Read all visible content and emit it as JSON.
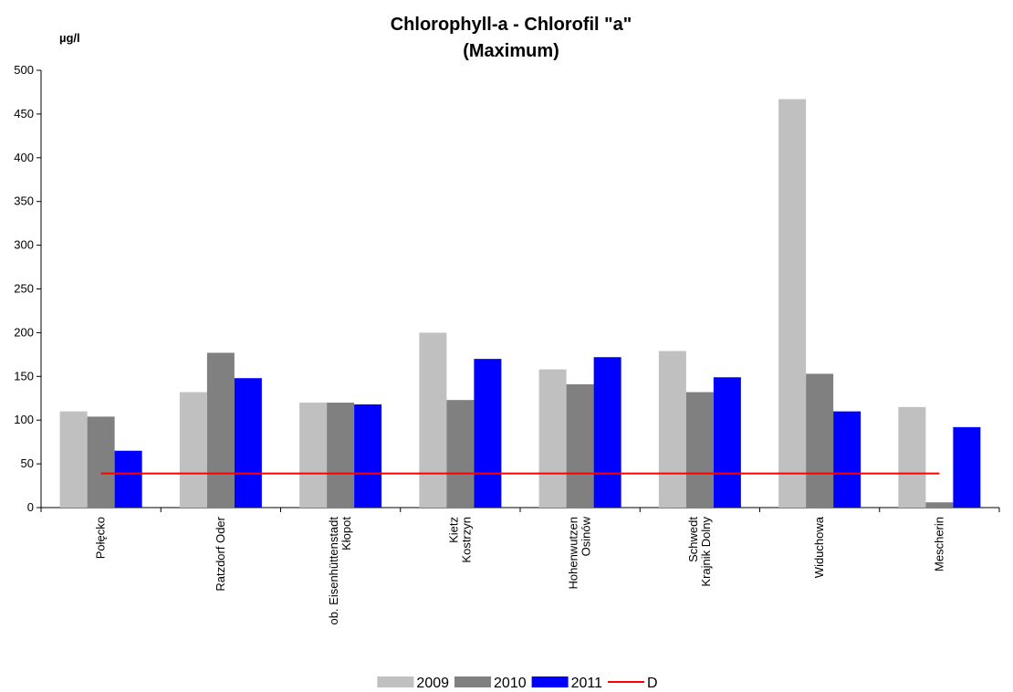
{
  "chart_data": {
    "type": "bar",
    "title": "Chlorophyll-a - Chlorofil \"a\"",
    "subtitle": "(Maximum)",
    "y_label": "µg/l",
    "categories": [
      "Połęcko",
      "Ratzdorf Oder",
      "ob. Eisenhüttenstadt\nKłopot",
      "Kietz\nKostrzyn",
      "Hohenwutzen\nOsinów",
      "Schwedt\nKrajnik Dolny",
      "Widuchowa",
      "Mescherin"
    ],
    "series": [
      {
        "name": "2009",
        "color": "#c0c0c0",
        "values": [
          110,
          132,
          120,
          200,
          158,
          179,
          467,
          115
        ]
      },
      {
        "name": "2010",
        "color": "#808080",
        "values": [
          104,
          177,
          120,
          123,
          141,
          132,
          153,
          6
        ]
      },
      {
        "name": "2011",
        "color": "#0000ff",
        "values": [
          65,
          148,
          118,
          170,
          172,
          149,
          110,
          92
        ]
      },
      {
        "name": "D",
        "type": "line",
        "color": "#ff0000",
        "values": [
          39,
          39,
          39,
          39,
          39,
          39,
          39,
          39
        ]
      }
    ],
    "ylim": [
      0,
      500
    ],
    "yticks": [
      0,
      50,
      100,
      150,
      200,
      250,
      300,
      350,
      400,
      450,
      500
    ],
    "grid": false,
    "legend": "bottom"
  }
}
